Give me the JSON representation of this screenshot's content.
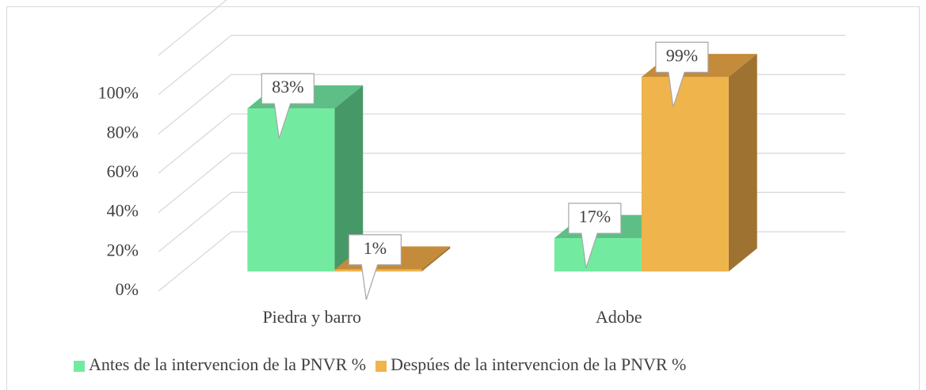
{
  "chart_data": {
    "type": "bar3d",
    "categories": [
      "Piedra y barro",
      "Adobe"
    ],
    "series": [
      {
        "name": "Antes de la intervencion de la PNVR %",
        "color": "#72EBA0",
        "side": "#469966",
        "top": "#5DBF86",
        "values": [
          83,
          17
        ],
        "value_labels": [
          "83%",
          "17%"
        ]
      },
      {
        "name": "Despúes de la intervencion de la PNVR %",
        "color": "#F0B44C",
        "side": "#9E7230",
        "top": "#C48B3A",
        "values": [
          1,
          99
        ],
        "value_labels": [
          "1%",
          "99%"
        ]
      }
    ],
    "ylim": [
      0,
      120
    ],
    "yticks": [
      {
        "value": 0,
        "label": "0%"
      },
      {
        "value": 20,
        "label": "20%"
      },
      {
        "value": 40,
        "label": "40%"
      },
      {
        "value": 60,
        "label": "60%"
      },
      {
        "value": 80,
        "label": "80%"
      },
      {
        "value": 100,
        "label": "100%"
      }
    ],
    "grid": true,
    "legend": "bottom"
  }
}
